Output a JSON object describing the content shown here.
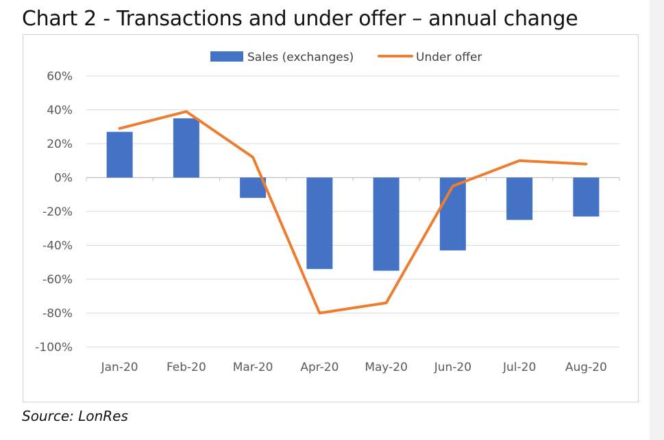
{
  "title": "Chart 2 - Transactions and under offer – annual change",
  "source": "Source: LonRes",
  "colors": {
    "bars": "#4472c4",
    "line": "#ed7d31",
    "grid": "#d9d9d9",
    "axis": "#bfbfbf"
  },
  "chart_data": {
    "type": "bar",
    "categories": [
      "Jan-20",
      "Feb-20",
      "Mar-20",
      "Apr-20",
      "May-20",
      "Jun-20",
      "Jul-20",
      "Aug-20"
    ],
    "series": [
      {
        "name": "Sales (exchanges)",
        "type": "bar",
        "values": [
          27,
          35,
          -12,
          -54,
          -55,
          -43,
          -25,
          -23
        ]
      },
      {
        "name": "Under offer",
        "type": "line",
        "values": [
          29,
          39,
          12,
          -80,
          -74,
          -5,
          10,
          8
        ]
      }
    ],
    "y_ticks": [
      "60%",
      "40%",
      "20%",
      "0%",
      "-20%",
      "-40%",
      "-60%",
      "-80%",
      "-100%"
    ],
    "ylim": [
      -100,
      60
    ],
    "grid": true,
    "legend": "top-center"
  }
}
